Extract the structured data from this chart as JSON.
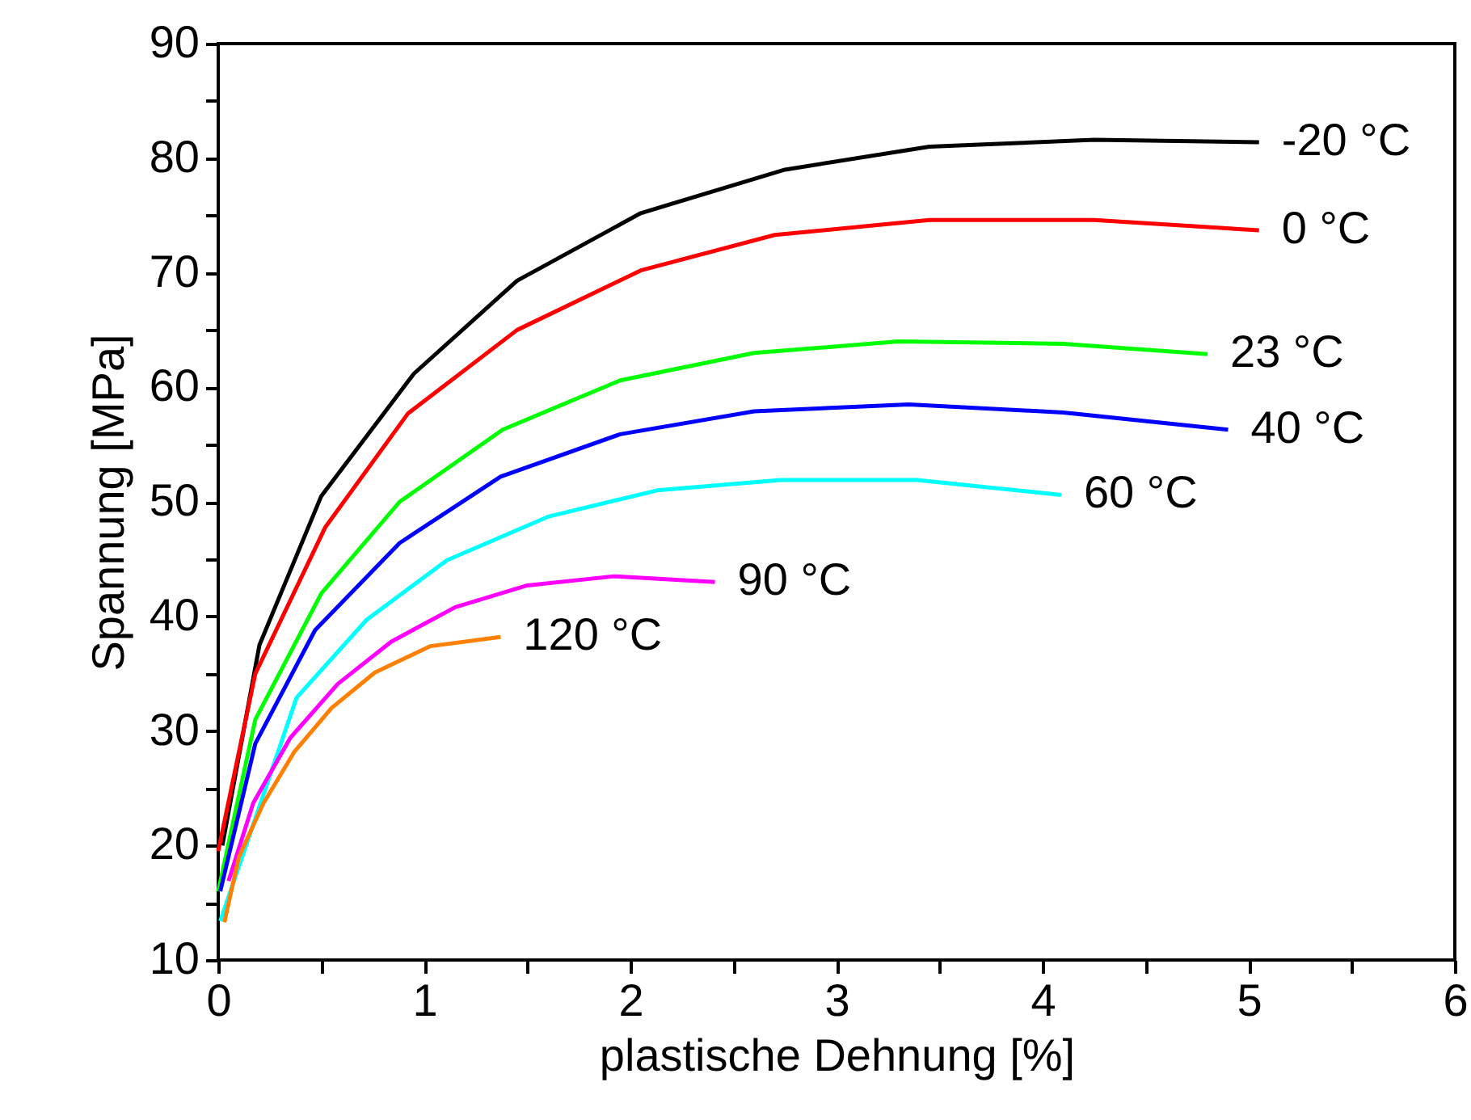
{
  "chart_data": {
    "type": "line",
    "xlabel": "plastische Dehnung [%]",
    "ylabel": "Spannung [MPa]",
    "xlim": [
      0,
      6
    ],
    "ylim": [
      10,
      90
    ],
    "xticks": [
      0,
      {
        "value": 0.5,
        "label": null
      },
      1,
      {
        "value": 1.5,
        "label": null
      },
      2,
      {
        "value": 2.5,
        "label": null
      },
      3,
      {
        "value": 3.5,
        "label": null
      },
      4,
      {
        "value": 4.5,
        "label": null
      },
      5,
      {
        "value": 5.5,
        "label": null
      },
      6
    ],
    "yticks": [
      10,
      {
        "value": 15,
        "label": null
      },
      20,
      {
        "value": 25,
        "label": null
      },
      30,
      {
        "value": 35,
        "label": null
      },
      40,
      {
        "value": 45,
        "label": null
      },
      50,
      {
        "value": 55,
        "label": null
      },
      60,
      {
        "value": 65,
        "label": null
      },
      70,
      {
        "value": 75,
        "label": null
      },
      80,
      {
        "value": 85,
        "label": null
      },
      90
    ],
    "grid": false,
    "legend": false,
    "marker": "none",
    "line_style": "solid",
    "series": [
      {
        "name": "-20 °C",
        "color": "#000000",
        "x": [
          0.02,
          0.2,
          0.5,
          0.95,
          1.45,
          2.05,
          2.75,
          3.45,
          4.25,
          5.05
        ],
        "values": [
          20,
          37.5,
          50.5,
          61.2,
          69.3,
          75.2,
          79,
          81,
          81.6,
          81.4
        ]
      },
      {
        "name": "0 °C",
        "color": "#ff0000",
        "x": [
          0.0,
          0.18,
          0.52,
          0.92,
          1.45,
          2.05,
          2.7,
          3.45,
          4.25,
          5.05
        ],
        "values": [
          19.5,
          35,
          47.8,
          57.7,
          65,
          70.2,
          73.3,
          74.6,
          74.6,
          73.7
        ]
      },
      {
        "name": "23 °C",
        "color": "#00ff00",
        "x": [
          0.0,
          0.18,
          0.5,
          0.88,
          1.38,
          1.95,
          2.6,
          3.3,
          4.1,
          4.8
        ],
        "values": [
          16,
          31,
          42,
          50,
          56.3,
          60.6,
          63,
          64,
          63.8,
          62.9
        ]
      },
      {
        "name": "40 °C",
        "color": "#0000ff",
        "x": [
          0.01,
          0.18,
          0.47,
          0.88,
          1.37,
          1.95,
          2.6,
          3.35,
          4.1,
          4.9
        ],
        "values": [
          16,
          28.9,
          38.8,
          46.4,
          52.2,
          55.9,
          57.9,
          58.5,
          57.8,
          56.3
        ]
      },
      {
        "name": "60 °C",
        "color": "#00ffff",
        "x": [
          0.01,
          0.38,
          0.72,
          1.11,
          1.6,
          2.13,
          2.73,
          3.39,
          4.09
        ],
        "values": [
          13.4,
          32.9,
          39.7,
          44.9,
          48.7,
          51,
          51.9,
          51.9,
          50.6
        ]
      },
      {
        "name": "90 °C",
        "color": "#ff00ff",
        "x": [
          0.05,
          0.17,
          0.35,
          0.58,
          0.84,
          1.15,
          1.5,
          1.92,
          2.41
        ],
        "values": [
          16.9,
          23.7,
          29.4,
          34.1,
          37.8,
          40.8,
          42.7,
          43.5,
          43
        ]
      },
      {
        "name": "120 °C",
        "color": "#ff8000",
        "x": [
          0.03,
          0.1,
          0.22,
          0.37,
          0.55,
          0.76,
          1.03,
          1.37
        ],
        "values": [
          13.3,
          19,
          23.7,
          28.2,
          32,
          35.1,
          37.4,
          38.2
        ]
      }
    ]
  }
}
